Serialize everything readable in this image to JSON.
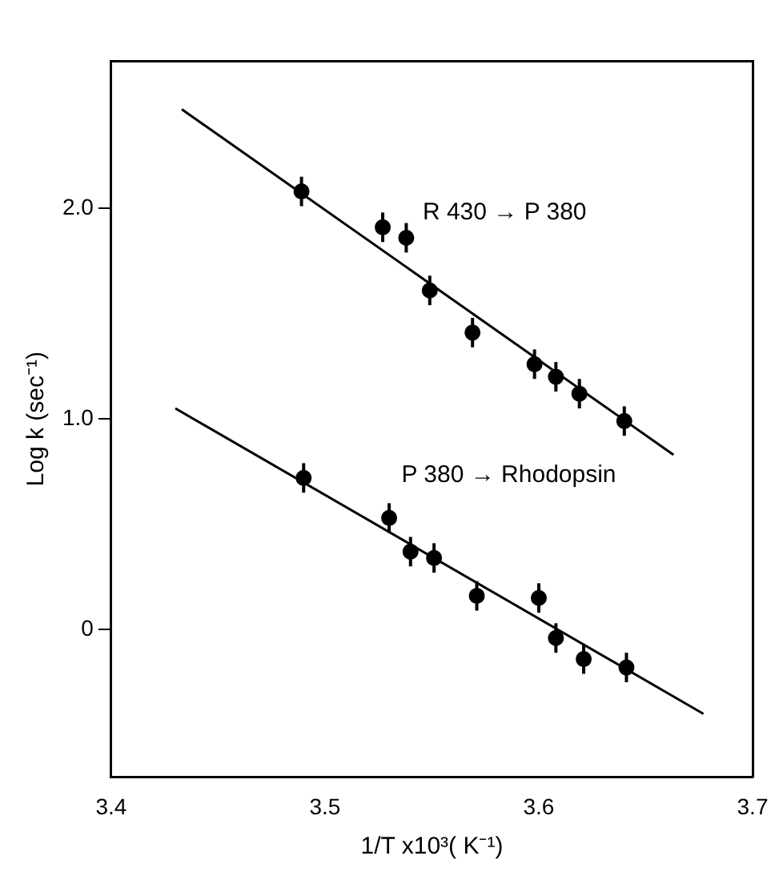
{
  "chart_data": {
    "type": "scatter",
    "xlabel": "1/T x10³( K⁻¹)",
    "ylabel": "Log k (sec⁻¹)",
    "xlim": [
      3.4,
      3.7
    ],
    "xticks": [
      3.4,
      3.5,
      3.6,
      3.7
    ],
    "ylim": [
      -0.7,
      2.7
    ],
    "yticks": [
      {
        "value": 0,
        "label": "0"
      },
      {
        "value": 1,
        "label": "1.0"
      },
      {
        "value": 2,
        "label": "2.0"
      }
    ],
    "grid": false,
    "legend": false,
    "marker": "circle",
    "series": [
      {
        "name": "R 430 → P 380",
        "color": "#000000",
        "x": [
          3.489,
          3.527,
          3.538,
          3.549,
          3.569,
          3.598,
          3.608,
          3.619,
          3.64
        ],
        "values": [
          2.08,
          1.91,
          1.86,
          1.61,
          1.41,
          1.26,
          1.2,
          1.12,
          0.99
        ],
        "errors": [
          0.07,
          0.07,
          0.07,
          0.07,
          0.07,
          0.07,
          0.07,
          0.07,
          0.07
        ]
      },
      {
        "name": "P 380 → Rhodopsin",
        "color": "#000000",
        "x": [
          3.49,
          3.53,
          3.54,
          3.551,
          3.571,
          3.6,
          3.608,
          3.621,
          3.641
        ],
        "values": [
          0.72,
          0.53,
          0.37,
          0.34,
          0.16,
          0.15,
          -0.04,
          -0.14,
          -0.18
        ],
        "errors": [
          0.07,
          0.07,
          0.07,
          0.07,
          0.07,
          0.07,
          0.07,
          0.07,
          0.07
        ]
      },
      {
        "type": "line",
        "marker": "none",
        "color": "#000000",
        "x": [
          3.433,
          3.663
        ],
        "values": [
          2.47,
          0.83
        ]
      },
      {
        "type": "line",
        "marker": "none",
        "color": "#000000",
        "x": [
          3.43,
          3.677
        ],
        "values": [
          1.05,
          -0.4
        ]
      }
    ]
  }
}
